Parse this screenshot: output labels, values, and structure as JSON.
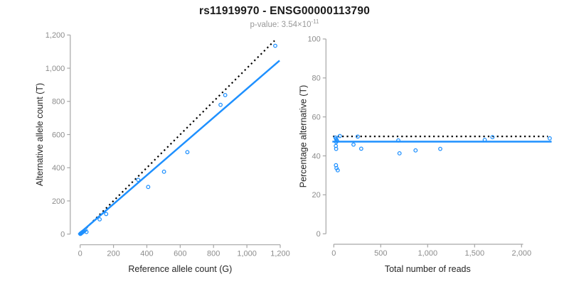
{
  "header": {
    "title": "rs11919970 - ENSG00000113790",
    "p_value_prefix": "p-value: 3.54×10",
    "p_value_exponent": "-11"
  },
  "colors": {
    "point": "#1E90FF",
    "fit_line": "#1E90FF",
    "reference_line": "#000000",
    "axis": "#a6a6a6",
    "tick_label": "#8c8c8c",
    "axis_title": "#262626"
  },
  "chart_data": [
    {
      "type": "scatter",
      "name": "allele-counts-plot",
      "xlabel": "Reference allele count (G)",
      "ylabel": "Alternative allele count (T)",
      "xlim": [
        0,
        1200
      ],
      "ylim": [
        0,
        1200
      ],
      "grid": false,
      "xticks": {
        "values": [
          0,
          200,
          400,
          600,
          800,
          1000,
          1200
        ],
        "labels": [
          "0",
          "200",
          "400",
          "600",
          "800",
          "1,000",
          "1,200"
        ]
      },
      "yticks": {
        "values": [
          0,
          200,
          400,
          600,
          800,
          1000,
          1200
        ],
        "labels": [
          "0",
          "200",
          "400",
          "600",
          "800",
          "1,000",
          "1,200"
        ]
      },
      "points": [
        [
          1,
          1
        ],
        [
          3,
          2
        ],
        [
          4,
          4
        ],
        [
          6,
          5
        ],
        [
          8,
          7
        ],
        [
          10,
          8
        ],
        [
          13,
          11
        ],
        [
          16,
          13
        ],
        [
          20,
          16
        ],
        [
          25,
          20
        ],
        [
          31,
          25
        ],
        [
          38,
          13
        ],
        [
          117,
          89
        ],
        [
          156,
          121
        ],
        [
          348,
          327
        ],
        [
          408,
          284
        ],
        [
          503,
          376
        ],
        [
          643,
          494
        ],
        [
          842,
          779
        ],
        [
          870,
          838
        ],
        [
          1170,
          1135
        ]
      ],
      "lines": [
        {
          "name": "identity-line",
          "style": "dotted",
          "color": "#000000",
          "from": [
            0,
            0
          ],
          "to": [
            1166,
            1166
          ]
        },
        {
          "name": "fit-line",
          "style": "solid",
          "color": "#1E90FF",
          "from": [
            -11,
            -2
          ],
          "to": [
            1196,
            1046
          ]
        }
      ]
    },
    {
      "type": "scatter",
      "name": "percentage-vs-coverage-plot",
      "xlabel": "Total number of reads",
      "ylabel": "Percentage alternative (T)",
      "xlim": [
        0,
        2320
      ],
      "ylim": [
        0,
        100
      ],
      "grid": false,
      "xticks": {
        "values": [
          0,
          500,
          1000,
          1500,
          2000
        ],
        "labels": [
          "0",
          "500",
          "1,000",
          "1,500",
          "2,000"
        ]
      },
      "yticks": {
        "values": [
          0,
          20,
          40,
          60,
          80,
          100
        ],
        "labels": [
          "0",
          "20",
          "40",
          "60",
          "80",
          "100"
        ]
      },
      "points": [
        [
          18,
          49.4
        ],
        [
          24,
          48.7
        ],
        [
          30,
          48.2
        ],
        [
          34,
          47.7
        ],
        [
          26,
          47.1
        ],
        [
          22,
          45.1
        ],
        [
          25,
          43.6
        ],
        [
          64,
          50.2
        ],
        [
          23,
          35.2
        ],
        [
          29,
          33.7
        ],
        [
          42,
          32.6
        ],
        [
          210,
          45.8
        ],
        [
          255,
          49.9
        ],
        [
          292,
          43.7
        ],
        [
          687,
          47.9
        ],
        [
          700,
          41.3
        ],
        [
          871,
          42.8
        ],
        [
          1134,
          43.6
        ],
        [
          1608,
          48.2
        ],
        [
          1690,
          49.6
        ],
        [
          2300,
          49.0
        ]
      ],
      "lines": [
        {
          "name": "expected-50pct-line",
          "style": "dotted",
          "color": "#000000",
          "from": [
            -8,
            50
          ],
          "to": [
            2280,
            50
          ]
        },
        {
          "name": "fit-line",
          "style": "solid",
          "color": "#1E90FF",
          "from": [
            -15,
            47.3
          ],
          "to": [
            2320,
            47.3
          ]
        }
      ]
    }
  ]
}
